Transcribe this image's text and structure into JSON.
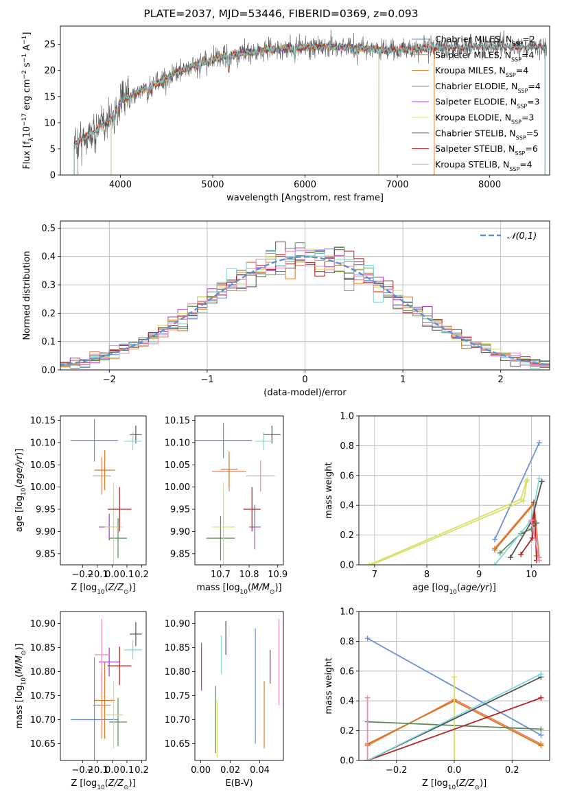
{
  "title": "PLATE=2037, MJD=53446, FIBERID=0369, z=0.093",
  "colors": {
    "Chabrier MILES": "#6a8fd8",
    "Salpeter MILES": "#ea7f58",
    "Kroupa MILES": "#d4781f",
    "Chabrier ELODIE": "#5a8a5a",
    "Salpeter ELODIE": "#9a3ec6",
    "Kroupa ELODIE": "#d8e06a",
    "Chabrier STELIB": "#505050",
    "Salpeter STELIB": "#b22222",
    "Kroupa STELIB": "#7fd8d8",
    "pink": "#e88ab4",
    "grid": "#b0b0b0"
  },
  "chart_data": [
    {
      "id": "spectrum",
      "type": "line",
      "title": "PLATE=2037, MJD=53446, FIBERID=0369, z=0.093",
      "xlabel": "wavelength [Angstrom, rest frame]",
      "ylabel": "Flux [f_λ 10^-17 erg cm^-2 s^-1 A^-1]",
      "xlim": [
        3350,
        8650
      ],
      "ylim": [
        0,
        28.5
      ],
      "xticks": [
        4000,
        5000,
        6000,
        7000,
        8000
      ],
      "yticks": [
        0,
        5,
        10,
        15,
        20,
        25
      ],
      "grid": false,
      "legend_position": "top-right",
      "legend": [
        {
          "name": "Chabrier MILES",
          "nssp": "2"
        },
        {
          "name": "Salpeter MILES",
          "nssp": "4"
        },
        {
          "name": "Kroupa MILES",
          "nssp": "4"
        },
        {
          "name": "Chabrier ELODIE",
          "nssp": "4"
        },
        {
          "name": "Salpeter ELODIE",
          "nssp": "3"
        },
        {
          "name": "Kroupa ELODIE",
          "nssp": "3"
        },
        {
          "name": "Chabrier STELIB",
          "nssp": "5"
        },
        {
          "name": "Salpeter STELIB",
          "nssp": "6"
        },
        {
          "name": "Kroupa STELIB",
          "nssp": "4"
        }
      ],
      "continuum": {
        "x": [
          3500,
          3700,
          3900,
          4000,
          4200,
          4400,
          4600,
          4800,
          5000,
          5200,
          5400,
          5600,
          5800,
          6000,
          6200,
          6400,
          6600,
          6800,
          7000,
          7200,
          7400
        ],
        "y": [
          6,
          8,
          11,
          14,
          16,
          17.5,
          19.5,
          21,
          22,
          23,
          23.5,
          24,
          24.2,
          24.5,
          24.5,
          24.6,
          24.4,
          24,
          24,
          24,
          24.5
        ]
      },
      "model_ranges": {
        "MILES": [
          3540,
          7400
        ],
        "ELODIE": [
          3900,
          6800
        ],
        "STELIB": [
          3500,
          8600
        ]
      }
    },
    {
      "id": "residuals",
      "type": "line",
      "xlabel": "(data-model)/error",
      "ylabel": "Normed distribution",
      "xlim": [
        -2.5,
        2.5
      ],
      "ylim": [
        0,
        0.525
      ],
      "xticks": [
        -2,
        -1,
        0,
        1,
        2
      ],
      "yticks": [
        0.0,
        0.1,
        0.2,
        0.3,
        0.4,
        0.5
      ],
      "grid": true,
      "legend": [
        {
          "name": "𝒩(0,1)",
          "style": "dashed"
        }
      ],
      "legend_position": "top-right",
      "bin_width": 0.1
    },
    {
      "id": "age_vs_Z",
      "type": "scatter",
      "xlabel": "Z [log10(Z/Z☉)]",
      "ylabel": "age  [log10(age/yr)]",
      "xlim": [
        -0.35,
        0.23
      ],
      "ylim": [
        9.825,
        10.16
      ],
      "xticks": [
        -0.2,
        -0.1,
        0.0,
        0.1,
        0.2
      ],
      "yticks": [
        9.85,
        9.9,
        9.95,
        10.0,
        10.05,
        10.1,
        10.15
      ],
      "grid": false,
      "points": [
        {
          "series": "Chabrier MILES",
          "x": -0.12,
          "y": 10.105,
          "xerr": 0.16,
          "yerr": 0.048
        },
        {
          "series": "Salpeter MILES",
          "x": -0.07,
          "y": 10.025,
          "xerr": 0.06,
          "yerr": 0.042
        },
        {
          "series": "Kroupa MILES",
          "x": -0.05,
          "y": 10.038,
          "xerr": 0.07,
          "yerr": 0.045
        },
        {
          "series": "Chabrier ELODIE",
          "x": 0.04,
          "y": 9.885,
          "xerr": 0.06,
          "yerr": 0.045
        },
        {
          "series": "Salpeter ELODIE",
          "x": -0.02,
          "y": 9.91,
          "xerr": 0.07,
          "yerr": 0.03
        },
        {
          "series": "Kroupa ELODIE",
          "x": 0.01,
          "y": 9.91,
          "xerr": 0.06,
          "yerr": 0.1
        },
        {
          "series": "Chabrier STELIB",
          "x": 0.16,
          "y": 10.118,
          "xerr": 0.04,
          "yerr": 0.02
        },
        {
          "series": "Salpeter STELIB",
          "x": 0.05,
          "y": 9.95,
          "xerr": 0.08,
          "yerr": 0.05
        },
        {
          "series": "Kroupa STELIB",
          "x": 0.14,
          "y": 10.103,
          "xerr": 0.06,
          "yerr": 0.02
        }
      ]
    },
    {
      "id": "age_vs_mass",
      "type": "scatter",
      "xlabel": "mass [log10(M/M☉)]",
      "xlim": [
        10.61,
        10.92
      ],
      "ylim": [
        9.825,
        10.16
      ],
      "xticks": [
        10.7,
        10.8,
        10.9
      ],
      "yticks": [
        9.85,
        9.9,
        9.95,
        10.0,
        10.05,
        10.1,
        10.15
      ],
      "grid": false,
      "points": [
        {
          "series": "Chabrier MILES",
          "x": 10.71,
          "y": 10.105,
          "xerr": 0.1,
          "yerr": 0.04
        },
        {
          "series": "Salpeter MILES",
          "x": 10.73,
          "y": 10.035,
          "xerr": 0.06,
          "yerr": 0.045
        },
        {
          "series": "Kroupa MILES",
          "x": 10.73,
          "y": 10.04,
          "xerr": 0.03,
          "yerr": 0.04
        },
        {
          "series": "Chabrier ELODIE",
          "x": 10.7,
          "y": 9.885,
          "xerr": 0.05,
          "yerr": 0.05
        },
        {
          "series": "Salpeter ELODIE",
          "x": 10.82,
          "y": 9.91,
          "xerr": 0.02,
          "yerr": 0.05
        },
        {
          "series": "Kroupa ELODIE",
          "x": 10.71,
          "y": 9.91,
          "xerr": 0.04,
          "yerr": 0.1
        },
        {
          "series": "Chabrier STELIB",
          "x": 10.88,
          "y": 10.118,
          "xerr": 0.03,
          "yerr": 0.02
        },
        {
          "series": "Salpeter STELIB",
          "x": 10.81,
          "y": 9.95,
          "xerr": 0.03,
          "yerr": 0.05
        },
        {
          "series": "Kroupa STELIB",
          "x": 10.85,
          "y": 10.103,
          "xerr": 0.03,
          "yerr": 0.02
        },
        {
          "series": "pink",
          "x": 10.84,
          "y": 10.025,
          "xerr": 0.05,
          "yerr": 0.035
        }
      ]
    },
    {
      "id": "weight_vs_age",
      "type": "line",
      "xlabel": "age  [log10(age/yr)]",
      "ylabel": "mass weight",
      "xlim": [
        6.7,
        10.35
      ],
      "ylim": [
        0.0,
        1.0
      ],
      "xticks": [
        7,
        8,
        9,
        10
      ],
      "yticks": [
        0.0,
        0.2,
        0.4,
        0.6,
        0.8,
        1.0
      ],
      "grid": true,
      "series": [
        {
          "name": "Chabrier MILES",
          "x": [
            9.3,
            10.15
          ],
          "y": [
            0.17,
            0.82
          ]
        },
        {
          "name": "Salpeter MILES",
          "x": [
            9.3,
            10.05,
            10.15
          ],
          "y": [
            0.11,
            0.42,
            0.05
          ]
        },
        {
          "name": "Kroupa MILES",
          "x": [
            9.3,
            10.05,
            10.1
          ],
          "y": [
            0.1,
            0.41,
            0.06
          ]
        },
        {
          "name": "Chabrier ELODIE",
          "x": [
            9.4,
            9.8,
            10.0,
            10.1
          ],
          "y": [
            0.08,
            0.21,
            0.24,
            0.28
          ]
        },
        {
          "name": "Kroupa ELODIE",
          "x": [
            6.9,
            9.8,
            9.9
          ],
          "y": [
            0.0,
            0.44,
            0.56
          ]
        },
        {
          "name": "Kroupa ELODIE",
          "x": [
            6.95,
            9.85,
            9.92
          ],
          "y": [
            0.0,
            0.43,
            0.57
          ]
        },
        {
          "name": "Chabrier STELIB",
          "x": [
            9.6,
            10.0,
            10.2
          ],
          "y": [
            0.05,
            0.29,
            0.56
          ]
        },
        {
          "name": "Salpeter STELIB",
          "x": [
            9.8,
            10.02,
            10.05,
            10.1
          ],
          "y": [
            0.07,
            0.18,
            0.42,
            0.03
          ]
        },
        {
          "name": "Kroupa STELIB",
          "x": [
            9.3,
            10.0,
            10.15
          ],
          "y": [
            0.0,
            0.3,
            0.58
          ]
        },
        {
          "name": "pink",
          "x": [
            10.0,
            10.15
          ],
          "y": [
            0.3,
            0.03
          ]
        }
      ]
    },
    {
      "id": "mass_vs_Z",
      "type": "scatter",
      "xlabel": "Z [log10(Z/Z☉)]",
      "ylabel": "mass [log10(M/M☉)]",
      "xlim": [
        -0.35,
        0.23
      ],
      "ylim": [
        10.615,
        10.925
      ],
      "xticks": [
        -0.2,
        -0.1,
        0.0,
        0.1,
        0.2
      ],
      "yticks": [
        10.65,
        10.7,
        10.75,
        10.8,
        10.85,
        10.9
      ],
      "grid": false,
      "points": [
        {
          "series": "Chabrier MILES",
          "x": -0.12,
          "y": 10.7,
          "xerr": 0.16,
          "yerr": 0.13
        },
        {
          "series": "Salpeter MILES",
          "x": -0.07,
          "y": 10.73,
          "xerr": 0.06,
          "yerr": 0.07
        },
        {
          "series": "Kroupa MILES",
          "x": -0.05,
          "y": 10.74,
          "xerr": 0.07,
          "yerr": 0.08
        },
        {
          "series": "Chabrier ELODIE",
          "x": 0.04,
          "y": 10.695,
          "xerr": 0.06,
          "yerr": 0.05
        },
        {
          "series": "Salpeter ELODIE",
          "x": -0.02,
          "y": 10.82,
          "xerr": 0.07,
          "yerr": 0.03
        },
        {
          "series": "Kroupa ELODIE",
          "x": 0.01,
          "y": 10.71,
          "xerr": 0.06,
          "yerr": 0.07
        },
        {
          "series": "Chabrier STELIB",
          "x": 0.16,
          "y": 10.878,
          "xerr": 0.04,
          "yerr": 0.025
        },
        {
          "series": "Salpeter STELIB",
          "x": 0.05,
          "y": 10.812,
          "xerr": 0.08,
          "yerr": 0.04
        },
        {
          "series": "Kroupa STELIB",
          "x": 0.14,
          "y": 10.845,
          "xerr": 0.06,
          "yerr": 0.02
        },
        {
          "series": "pink",
          "x": -0.07,
          "y": 10.835,
          "xerr": 0.05,
          "yerr": 0.075
        }
      ]
    },
    {
      "id": "mass_vs_ebv",
      "type": "scatter",
      "xlabel": "E(B-V)",
      "xlim": [
        -0.004,
        0.056
      ],
      "ylim": [
        10.615,
        10.925
      ],
      "xticks": [
        0.0,
        0.02,
        0.04
      ],
      "yticks": [
        10.65,
        10.7,
        10.75,
        10.8,
        10.85,
        10.9
      ],
      "grid": false,
      "points": [
        {
          "series": "Salpeter ELODIE",
          "x": 0.0005,
          "y": 10.81,
          "yerr": 0.05
        },
        {
          "series": "Chabrier ELODIE",
          "x": 0.01,
          "y": 10.7,
          "yerr": 0.07
        },
        {
          "series": "Kroupa ELODIE",
          "x": 0.011,
          "y": 10.68,
          "yerr": 0.06
        },
        {
          "series": "Kroupa STELIB",
          "x": 0.014,
          "y": 10.835,
          "yerr": 0.04
        },
        {
          "series": "Chabrier STELIB",
          "x": 0.017,
          "y": 10.87,
          "yerr": 0.035
        },
        {
          "series": "Chabrier MILES",
          "x": 0.037,
          "y": 10.77,
          "yerr": 0.12
        },
        {
          "series": "Kroupa MILES",
          "x": 0.043,
          "y": 10.71,
          "yerr": 0.07
        },
        {
          "series": "Salpeter STELIB",
          "x": 0.047,
          "y": 10.81,
          "yerr": 0.035
        },
        {
          "series": "pink",
          "x": 0.053,
          "y": 10.82,
          "yerr": 0.09
        }
      ]
    },
    {
      "id": "weight_vs_Z",
      "type": "line",
      "xlabel": "Z [log10(Z/Z☉)]",
      "ylabel": "mass weight",
      "xlim": [
        -0.33,
        0.33
      ],
      "ylim": [
        0.0,
        1.0
      ],
      "xticks": [
        -0.2,
        0.0,
        0.2
      ],
      "yticks": [
        0.0,
        0.2,
        0.4,
        0.6,
        0.8,
        1.0
      ],
      "grid": true,
      "series": [
        {
          "name": "Chabrier MILES",
          "x": [
            -0.3,
            0.3
          ],
          "y": [
            0.82,
            0.17
          ]
        },
        {
          "name": "Salpeter MILES",
          "x": [
            -0.3,
            0.0,
            0.3
          ],
          "y": [
            0.1,
            0.41,
            0.11
          ]
        },
        {
          "name": "Kroupa MILES",
          "x": [
            -0.3,
            0.0,
            0.3
          ],
          "y": [
            0.11,
            0.4,
            0.1
          ]
        },
        {
          "name": "Chabrier ELODIE",
          "x": [
            -0.3,
            0.3
          ],
          "y": [
            0.26,
            0.21
          ]
        },
        {
          "name": "Kroupa ELODIE",
          "x": [
            0.0,
            0.0
          ],
          "y": [
            0.0,
            0.56
          ]
        },
        {
          "name": "Chabrier STELIB",
          "x": [
            -0.3,
            0.3
          ],
          "y": [
            0.0,
            0.56
          ]
        },
        {
          "name": "Salpeter STELIB",
          "x": [
            -0.3,
            0.3
          ],
          "y": [
            0.0,
            0.42
          ]
        },
        {
          "name": "Kroupa STELIB",
          "x": [
            -0.3,
            0.3
          ],
          "y": [
            0.0,
            0.58
          ]
        },
        {
          "name": "pink",
          "x": [
            -0.3,
            -0.3
          ],
          "y": [
            0.0,
            0.42
          ]
        }
      ]
    }
  ]
}
